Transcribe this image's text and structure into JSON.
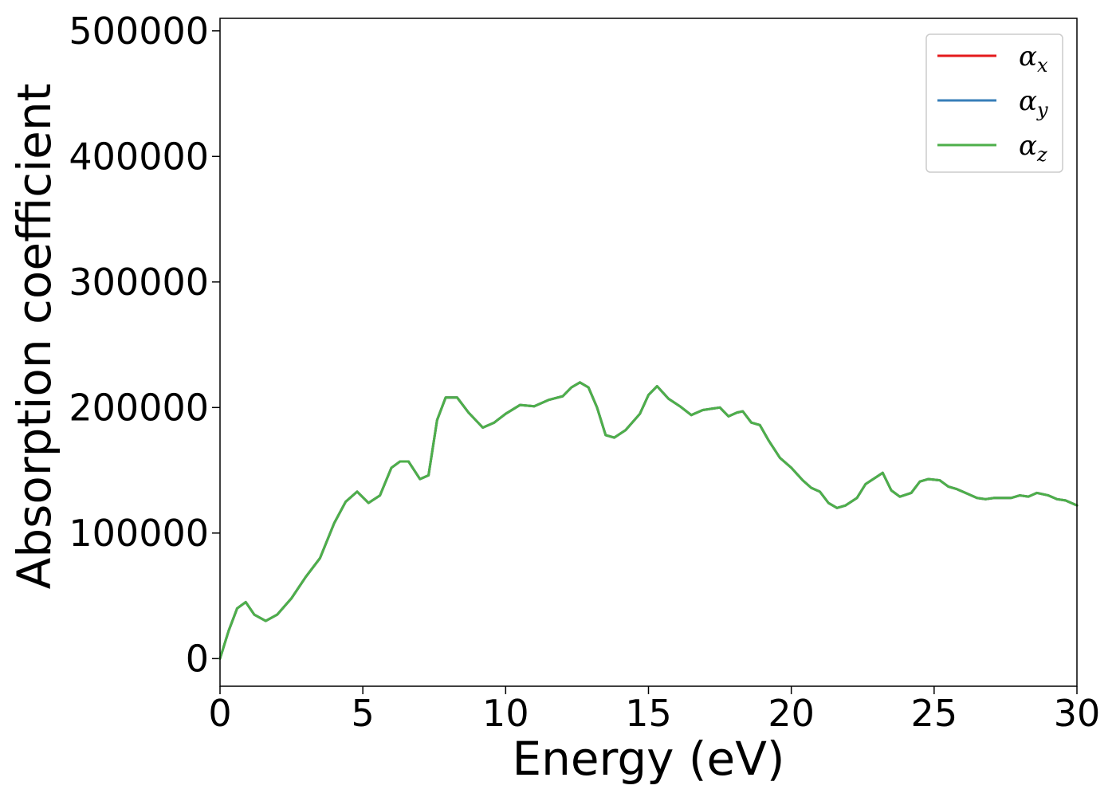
{
  "chart_data": {
    "type": "line",
    "title": "",
    "xlabel": "Energy (eV)",
    "ylabel": "Absorption coefficient",
    "xlim": [
      0,
      30
    ],
    "ylim": [
      -22000,
      510000
    ],
    "xticks": [
      0,
      5,
      10,
      15,
      20,
      25,
      30
    ],
    "xtick_labels": [
      "0",
      "5",
      "10",
      "15",
      "20",
      "25",
      "30"
    ],
    "yticks": [
      0,
      100000,
      200000,
      300000,
      400000,
      500000
    ],
    "ytick_labels": [
      "0",
      "100000",
      "200000",
      "300000",
      "400000",
      "500000"
    ],
    "grid": false,
    "legend_position": "top-right",
    "x": [
      0,
      0.3,
      0.6,
      0.9,
      1.2,
      1.6,
      2.0,
      2.5,
      3.0,
      3.5,
      4.0,
      4.4,
      4.8,
      5.2,
      5.6,
      6.0,
      6.3,
      6.6,
      7.0,
      7.3,
      7.6,
      7.9,
      8.3,
      8.7,
      9.2,
      9.6,
      10.0,
      10.5,
      11.0,
      11.5,
      12.0,
      12.3,
      12.6,
      12.9,
      13.2,
      13.5,
      13.8,
      14.2,
      14.7,
      15.0,
      15.3,
      15.7,
      16.1,
      16.5,
      16.9,
      17.2,
      17.5,
      17.8,
      18.1,
      18.3,
      18.6,
      18.9,
      19.2,
      19.6,
      20.0,
      20.4,
      20.7,
      21.0,
      21.3,
      21.6,
      21.9,
      22.3,
      22.6,
      23.0,
      23.2,
      23.5,
      23.8,
      24.2,
      24.5,
      24.8,
      25.2,
      25.5,
      25.8,
      26.2,
      26.5,
      26.8,
      27.1,
      27.4,
      27.7,
      28.0,
      28.3,
      28.6,
      29.0,
      29.3,
      29.6,
      30.0
    ],
    "series": [
      {
        "name": "α_x",
        "label_main": "α",
        "label_sub": "x",
        "color": "#e41a1c",
        "values": [
          0,
          22000,
          40000,
          45000,
          35000,
          30000,
          35000,
          48000,
          65000,
          80000,
          108000,
          125000,
          133000,
          124000,
          130000,
          152000,
          157000,
          157000,
          143000,
          146000,
          190000,
          208000,
          208000,
          196000,
          184000,
          188000,
          195000,
          202000,
          201000,
          206000,
          209000,
          216000,
          220000,
          216000,
          200000,
          178000,
          176000,
          182000,
          195000,
          210000,
          217000,
          207000,
          201000,
          194000,
          198000,
          199000,
          200000,
          193000,
          196000,
          197000,
          188000,
          186000,
          174000,
          160000,
          152000,
          142000,
          136000,
          133000,
          124000,
          120000,
          122000,
          128000,
          139000,
          145000,
          148000,
          134000,
          129000,
          132000,
          141000,
          143000,
          142000,
          137000,
          135000,
          131000,
          128000,
          127000,
          128000,
          128000,
          128000,
          130000,
          129000,
          132000,
          130000,
          127000,
          126000,
          122000
        ]
      },
      {
        "name": "α_y",
        "label_main": "α",
        "label_sub": "y",
        "color": "#377eb8",
        "values": [
          0,
          22000,
          40000,
          45000,
          35000,
          30000,
          35000,
          48000,
          65000,
          80000,
          108000,
          125000,
          133000,
          124000,
          130000,
          152000,
          157000,
          157000,
          143000,
          146000,
          190000,
          208000,
          208000,
          196000,
          184000,
          188000,
          195000,
          202000,
          201000,
          206000,
          209000,
          216000,
          220000,
          216000,
          200000,
          178000,
          176000,
          182000,
          195000,
          210000,
          217000,
          207000,
          201000,
          194000,
          198000,
          199000,
          200000,
          193000,
          196000,
          197000,
          188000,
          186000,
          174000,
          160000,
          152000,
          142000,
          136000,
          133000,
          124000,
          120000,
          122000,
          128000,
          139000,
          145000,
          148000,
          134000,
          129000,
          132000,
          141000,
          143000,
          142000,
          137000,
          135000,
          131000,
          128000,
          127000,
          128000,
          128000,
          128000,
          130000,
          129000,
          132000,
          130000,
          127000,
          126000,
          122000
        ]
      },
      {
        "name": "α_z",
        "label_main": "α",
        "label_sub": "z",
        "color": "#4daf4a",
        "values": [
          0,
          22000,
          40000,
          45000,
          35000,
          30000,
          35000,
          48000,
          65000,
          80000,
          108000,
          125000,
          133000,
          124000,
          130000,
          152000,
          157000,
          157000,
          143000,
          146000,
          190000,
          208000,
          208000,
          196000,
          184000,
          188000,
          195000,
          202000,
          201000,
          206000,
          209000,
          216000,
          220000,
          216000,
          200000,
          178000,
          176000,
          182000,
          195000,
          210000,
          217000,
          207000,
          201000,
          194000,
          198000,
          199000,
          200000,
          193000,
          196000,
          197000,
          188000,
          186000,
          174000,
          160000,
          152000,
          142000,
          136000,
          133000,
          124000,
          120000,
          122000,
          128000,
          139000,
          145000,
          148000,
          134000,
          129000,
          132000,
          141000,
          143000,
          142000,
          137000,
          135000,
          131000,
          128000,
          127000,
          128000,
          128000,
          128000,
          130000,
          129000,
          132000,
          130000,
          127000,
          126000,
          122000
        ]
      }
    ]
  }
}
